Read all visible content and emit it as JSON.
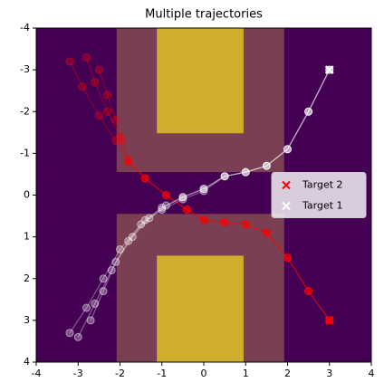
{
  "chart_data": {
    "type": "scatter",
    "title": "Multiple trajectories",
    "xlim": [
      -4,
      4
    ],
    "ylim": [
      4,
      -4
    ],
    "xticks": [
      -4,
      -3,
      -2,
      -1,
      0,
      1,
      2,
      3,
      4
    ],
    "yticks": [
      -4,
      -3,
      -2,
      -1,
      0,
      1,
      2,
      3,
      4
    ],
    "background": "#440154",
    "regions": [
      {
        "color": "#7a3f52",
        "x": [
          -2.08,
          1.92
        ],
        "y": [
          -4,
          -0.55
        ]
      },
      {
        "color": "#7a3f52",
        "x": [
          -2.08,
          1.92
        ],
        "y": [
          0.45,
          4
        ]
      },
      {
        "color": "#cfae2c",
        "x": [
          -1.12,
          0.95
        ],
        "y": [
          -4,
          -1.48
        ]
      },
      {
        "color": "#cfae2c",
        "x": [
          -1.12,
          0.95
        ],
        "y": [
          1.45,
          4
        ]
      }
    ],
    "trajectories": [
      {
        "color": "#ff0000",
        "x": [
          -3.2,
          -2.9,
          -2.5,
          -2.1,
          -1.8,
          -1.4,
          -0.9,
          -0.4,
          0,
          0.5,
          1.0,
          1.5,
          2.0,
          2.5,
          3
        ],
        "y": [
          -3.2,
          -2.6,
          -1.9,
          -1.3,
          -0.8,
          -0.4,
          0,
          0.35,
          0.6,
          0.65,
          0.7,
          0.9,
          1.5,
          2.3,
          3
        ]
      },
      {
        "color": "#ff0000",
        "x": [
          -2.8,
          -2.6,
          -2.3,
          -2.0,
          -1.8,
          -1.4,
          -0.9,
          -0.4,
          0,
          0.5,
          1.0,
          1.5,
          2.0,
          2.5,
          3
        ],
        "y": [
          -3.3,
          -2.7,
          -2.0,
          -1.4,
          -0.85,
          -0.4,
          0,
          0.35,
          0.6,
          0.65,
          0.7,
          0.9,
          1.5,
          2.3,
          3
        ]
      },
      {
        "color": "#ff0000",
        "x": [
          -2.5,
          -2.3,
          -2.1,
          -1.95,
          -1.8,
          -1.4,
          -0.9,
          -0.4,
          0,
          0.5,
          1.0,
          1.5,
          2.0,
          2.5,
          3
        ],
        "y": [
          -3.0,
          -2.4,
          -1.8,
          -1.3,
          -0.8,
          -0.4,
          0,
          0.35,
          0.6,
          0.65,
          0.7,
          0.9,
          1.5,
          2.3,
          3
        ]
      },
      {
        "color": "#ffffff",
        "x": [
          -3.2,
          -2.8,
          -2.4,
          -2.0,
          -1.5,
          -1.0,
          -0.5,
          0,
          0.5,
          1.0,
          1.5,
          2.0,
          2.5,
          3
        ],
        "y": [
          3.3,
          2.7,
          2.0,
          1.3,
          0.7,
          0.35,
          0.1,
          -0.1,
          -0.45,
          -0.55,
          -0.7,
          -1.1,
          -2.0,
          -3
        ]
      },
      {
        "color": "#ffffff",
        "x": [
          -3.0,
          -2.6,
          -2.2,
          -1.8,
          -1.4,
          -1.0,
          -0.5,
          0,
          0.5,
          1.0,
          1.5,
          2.0,
          2.5,
          3
        ],
        "y": [
          3.4,
          2.6,
          1.8,
          1.1,
          0.6,
          0.3,
          0.05,
          -0.15,
          -0.45,
          -0.55,
          -0.7,
          -1.1,
          -2.0,
          -3
        ]
      },
      {
        "color": "#ffffff",
        "x": [
          -2.7,
          -2.4,
          -2.1,
          -1.7,
          -1.3,
          -0.9,
          -0.5,
          0,
          0.5,
          1.0,
          1.5,
          2.0,
          2.5,
          3
        ],
        "y": [
          3.0,
          2.3,
          1.6,
          1.0,
          0.55,
          0.25,
          0.05,
          -0.15,
          -0.45,
          -0.55,
          -0.7,
          -1.1,
          -2.0,
          -3
        ]
      }
    ],
    "targets": [
      {
        "name": "Target 2",
        "color": "#ff0000",
        "x": 3,
        "y": 3
      },
      {
        "name": "Target 1",
        "color": "#ffffff",
        "x": 3,
        "y": -3
      }
    ],
    "legend": "center right"
  }
}
